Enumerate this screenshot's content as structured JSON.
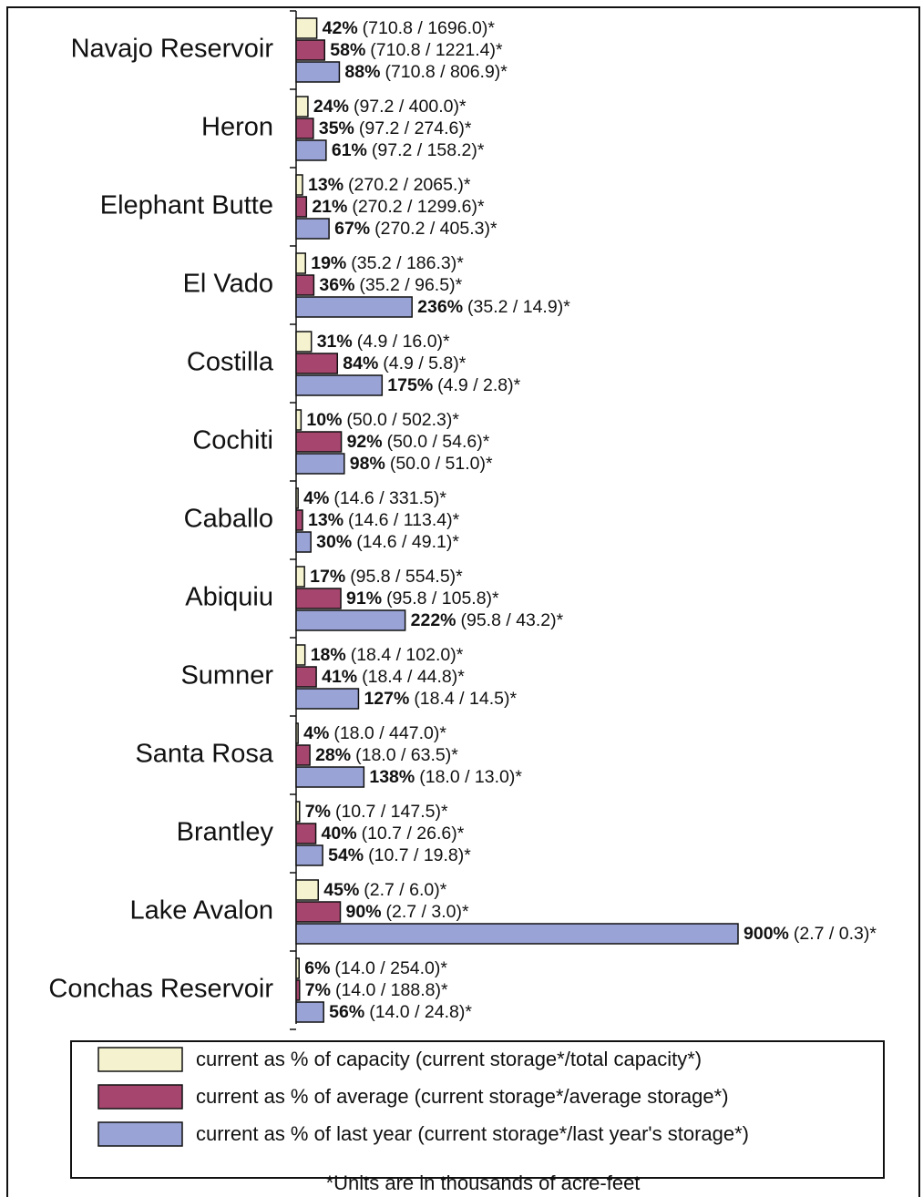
{
  "chart_data": {
    "type": "barh",
    "categories": [
      "Navajo Reservoir",
      "Heron",
      "Elephant Butte",
      "El Vado",
      "Costilla",
      "Cochiti",
      "Caballo",
      "Abiquiu",
      "Sumner",
      "Santa Rosa",
      "Brantley",
      "Lake Avalon",
      "Conchas Reservoir"
    ],
    "series": [
      {
        "name": "current as % of capacity (current storage*/total capacity*)",
        "color": "#f4f2cf",
        "values": [
          42,
          24,
          13,
          19,
          31,
          10,
          4,
          17,
          18,
          4,
          7,
          45,
          6
        ],
        "value_labels": [
          "42%",
          "24%",
          "13%",
          "19%",
          "31%",
          "10%",
          "4%",
          "17%",
          "18%",
          "4%",
          "7%",
          "45%",
          "6%"
        ],
        "value_notes": [
          "(710.8 / 1696.0)*",
          "(97.2 / 400.0)*",
          "(270.2 / 2065.)*",
          "(35.2 / 186.3)*",
          "(4.9 / 16.0)*",
          "(50.0 / 502.3)*",
          "(14.6 / 331.5)*",
          "(95.8 / 554.5)*",
          "(18.4 / 102.0)*",
          "(18.0 / 447.0)*",
          "(10.7 / 147.5)*",
          "(2.7 / 6.0)*",
          "(14.0 / 254.0)*"
        ]
      },
      {
        "name": "current as % of average (current storage*/average storage*)",
        "color": "#a6466e",
        "values": [
          58,
          35,
          21,
          36,
          84,
          92,
          13,
          91,
          41,
          28,
          40,
          90,
          7
        ],
        "value_labels": [
          "58%",
          "35%",
          "21%",
          "36%",
          "84%",
          "92%",
          "13%",
          "91%",
          "41%",
          "28%",
          "40%",
          "90%",
          "7%"
        ],
        "value_notes": [
          "(710.8 / 1221.4)*",
          "(97.2 / 274.6)*",
          "(270.2 / 1299.6)*",
          "(35.2 / 96.5)*",
          "(4.9 / 5.8)*",
          "(50.0 / 54.6)*",
          "(14.6 / 113.4)*",
          "(95.8 / 105.8)*",
          "(18.4 / 44.8)*",
          "(18.0 / 63.5)*",
          "(10.7 / 26.6)*",
          "(2.7 / 3.0)*",
          "(14.0 / 188.8)*"
        ]
      },
      {
        "name": "current as % of last year (current storage*/last year's storage*)",
        "color": "#9aa3d6",
        "values": [
          88,
          61,
          67,
          236,
          175,
          98,
          30,
          222,
          127,
          138,
          54,
          900,
          56
        ],
        "value_labels": [
          "88%",
          "61%",
          "67%",
          "236%",
          "175%",
          "98%",
          "30%",
          "222%",
          "127%",
          "138%",
          "54%",
          "900%",
          "56%"
        ],
        "value_notes": [
          "(710.8 / 806.9)*",
          "(97.2 / 158.2)*",
          "(270.2 / 405.3)*",
          "(35.2 / 14.9)*",
          "(4.9 / 2.8)*",
          "(50.0 / 51.0)*",
          "(14.6 / 49.1)*",
          "(95.8 / 43.2)*",
          "(18.4 / 14.5)*",
          "(18.0 / 13.0)*",
          "(10.7 / 19.8)*",
          "(2.7 / 0.3)*",
          "(14.0 / 24.8)*"
        ]
      }
    ],
    "footnote": "*Units are in thousands of acre-feet"
  }
}
